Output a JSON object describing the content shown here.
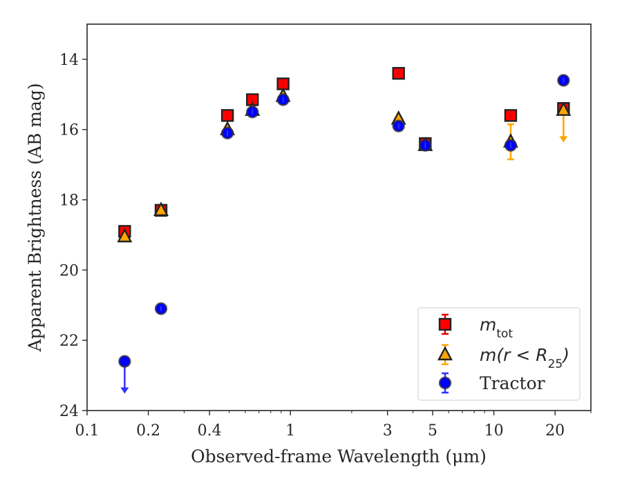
{
  "chart_data": {
    "type": "scatter",
    "xlabel": "Observed-frame Wavelength (μm)",
    "ylabel": "Apparent Brightness (AB mag)",
    "x_scale": "log",
    "xlim": [
      0.1,
      30
    ],
    "ylim": [
      24,
      13
    ],
    "y_inverted": true,
    "x_ticks": [
      0.1,
      0.2,
      0.4,
      1,
      3,
      5,
      10,
      20
    ],
    "x_tick_labels": [
      "0.1",
      "0.2",
      "0.4",
      "1",
      "3",
      "5",
      "10",
      "20"
    ],
    "y_ticks": [
      14,
      16,
      18,
      20,
      22,
      24
    ],
    "y_tick_labels": [
      "14",
      "16",
      "18",
      "20",
      "22",
      "24"
    ],
    "grid": false,
    "legend_position": "lower-right",
    "series": [
      {
        "name": "m_tot",
        "legend_main": "m",
        "legend_sub": "tot",
        "marker": "square",
        "color": "#ff0000",
        "edge_color": "#222222",
        "errorbar_color": "#e00000",
        "points": [
          {
            "x": 0.153,
            "y": 18.9
          },
          {
            "x": 0.231,
            "y": 18.3
          },
          {
            "x": 0.49,
            "y": 15.6
          },
          {
            "x": 0.65,
            "y": 15.15
          },
          {
            "x": 0.92,
            "y": 14.7
          },
          {
            "x": 3.4,
            "y": 14.4
          },
          {
            "x": 4.6,
            "y": 16.4
          },
          {
            "x": 12.1,
            "y": 15.6
          },
          {
            "x": 22.0,
            "y": 15.4
          }
        ]
      },
      {
        "name": "m(r < R25)",
        "legend_main": "m(r < R",
        "legend_sub": "25",
        "legend_close": ")",
        "marker": "triangle",
        "color": "#ffa500",
        "edge_color": "#222222",
        "errorbar_color": "#ffa500",
        "points": [
          {
            "x": 0.153,
            "y": 19.05
          },
          {
            "x": 0.231,
            "y": 18.3
          },
          {
            "x": 0.49,
            "y": 16.0
          },
          {
            "x": 0.65,
            "y": 15.45
          },
          {
            "x": 0.92,
            "y": 15.05
          },
          {
            "x": 3.4,
            "y": 15.7
          },
          {
            "x": 4.6,
            "y": 16.45
          },
          {
            "x": 12.1,
            "y": 16.35,
            "yerr": 0.5
          },
          {
            "x": 22.0,
            "y": 15.45,
            "upper_limit": true
          }
        ]
      },
      {
        "name": "Tractor",
        "marker": "circle",
        "color": "#0000ff",
        "edge_color": "#333333",
        "errorbar_color": "#3030ff",
        "points": [
          {
            "x": 0.153,
            "y": 22.6,
            "upper_limit": true
          },
          {
            "x": 0.231,
            "y": 21.1
          },
          {
            "x": 0.49,
            "y": 16.1
          },
          {
            "x": 0.65,
            "y": 15.5
          },
          {
            "x": 0.92,
            "y": 15.15
          },
          {
            "x": 3.4,
            "y": 15.9
          },
          {
            "x": 4.6,
            "y": 16.45
          },
          {
            "x": 12.1,
            "y": 16.45
          },
          {
            "x": 22.0,
            "y": 14.6
          }
        ]
      }
    ]
  }
}
